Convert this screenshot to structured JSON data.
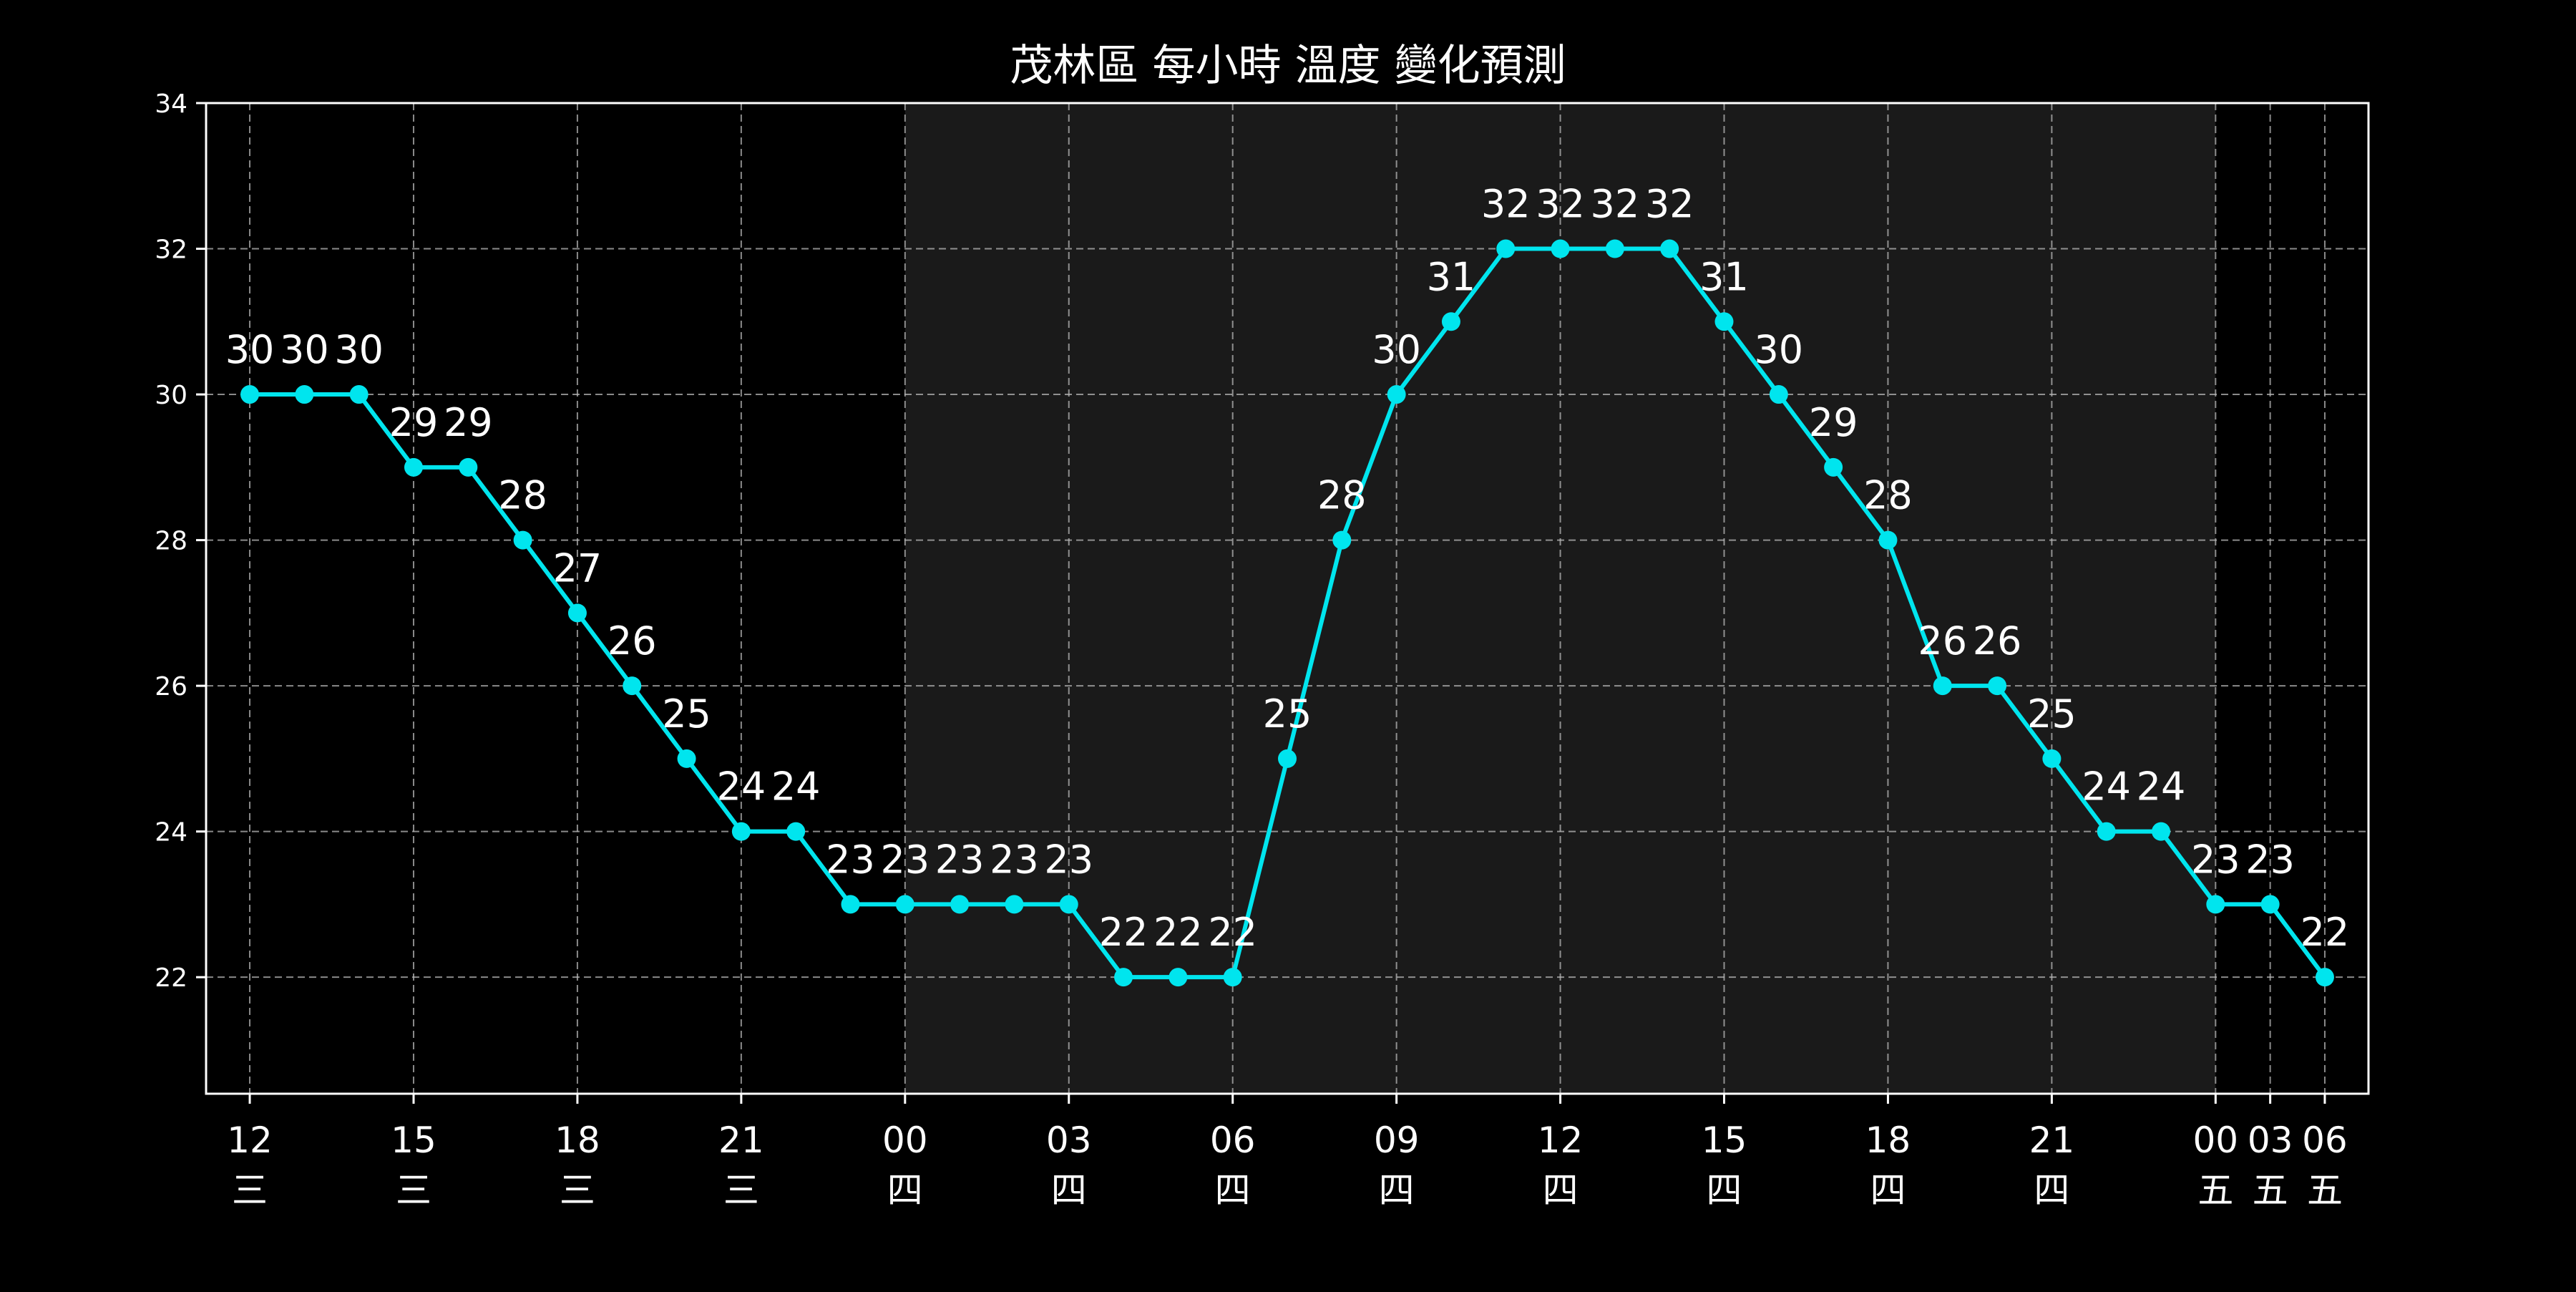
{
  "chart_data": {
    "type": "line",
    "title": "茂林區 每小時 溫度 變化預測",
    "xlabel": "",
    "ylabel": "",
    "ylim": [
      20.4,
      34
    ],
    "yticks": [
      22,
      24,
      26,
      28,
      30,
      32,
      34
    ],
    "grid": true,
    "line_color": "#00e5ee",
    "night_shade_color": "#1a1a1a",
    "background_color": "#000000",
    "night_shade_x_range": [
      12,
      36
    ],
    "x": [
      0,
      1,
      2,
      3,
      4,
      5,
      6,
      7,
      8,
      9,
      10,
      11,
      12,
      13,
      14,
      15,
      16,
      17,
      18,
      19,
      20,
      21,
      22,
      23,
      24,
      25,
      26,
      27,
      28,
      29,
      30,
      31,
      32,
      33,
      34,
      35,
      36,
      37,
      38
    ],
    "values": [
      30,
      30,
      30,
      29,
      29,
      28,
      27,
      26,
      25,
      24,
      24,
      23,
      23,
      23,
      23,
      23,
      22,
      22,
      22,
      25,
      28,
      30,
      31,
      32,
      32,
      32,
      32,
      31,
      30,
      29,
      28,
      26,
      26,
      25,
      24,
      24,
      23,
      23,
      22
    ],
    "point_labels": [
      "30",
      "30",
      "30",
      "29",
      "29",
      "28",
      "27",
      "26",
      "25",
      "24",
      "24",
      "23",
      "23",
      "23",
      "23",
      "23",
      "22",
      "22",
      "22",
      "25",
      "28",
      "30",
      "31",
      "32",
      "32",
      "32",
      "32",
      "31",
      "30",
      "29",
      "28",
      "26",
      "26",
      "25",
      "24",
      "24",
      "23",
      "23",
      "22"
    ],
    "x_ticks": [
      {
        "x": 0,
        "hour": "12",
        "day": "三"
      },
      {
        "x": 3,
        "hour": "15",
        "day": "三"
      },
      {
        "x": 6,
        "hour": "18",
        "day": "三"
      },
      {
        "x": 9,
        "hour": "21",
        "day": "三"
      },
      {
        "x": 12,
        "hour": "00",
        "day": "四"
      },
      {
        "x": 15,
        "hour": "03",
        "day": "四"
      },
      {
        "x": 18,
        "hour": "06",
        "day": "四"
      },
      {
        "x": 21,
        "hour": "09",
        "day": "四"
      },
      {
        "x": 24,
        "hour": "12",
        "day": "四"
      },
      {
        "x": 27,
        "hour": "15",
        "day": "四"
      },
      {
        "x": 30,
        "hour": "18",
        "day": "四"
      },
      {
        "x": 33,
        "hour": "21",
        "day": "四"
      },
      {
        "x": 36,
        "hour": "00",
        "day": "五"
      },
      {
        "x": 37,
        "hour": "03",
        "day": "五"
      },
      {
        "x": 38,
        "hour": "06",
        "day": "五"
      }
    ]
  }
}
